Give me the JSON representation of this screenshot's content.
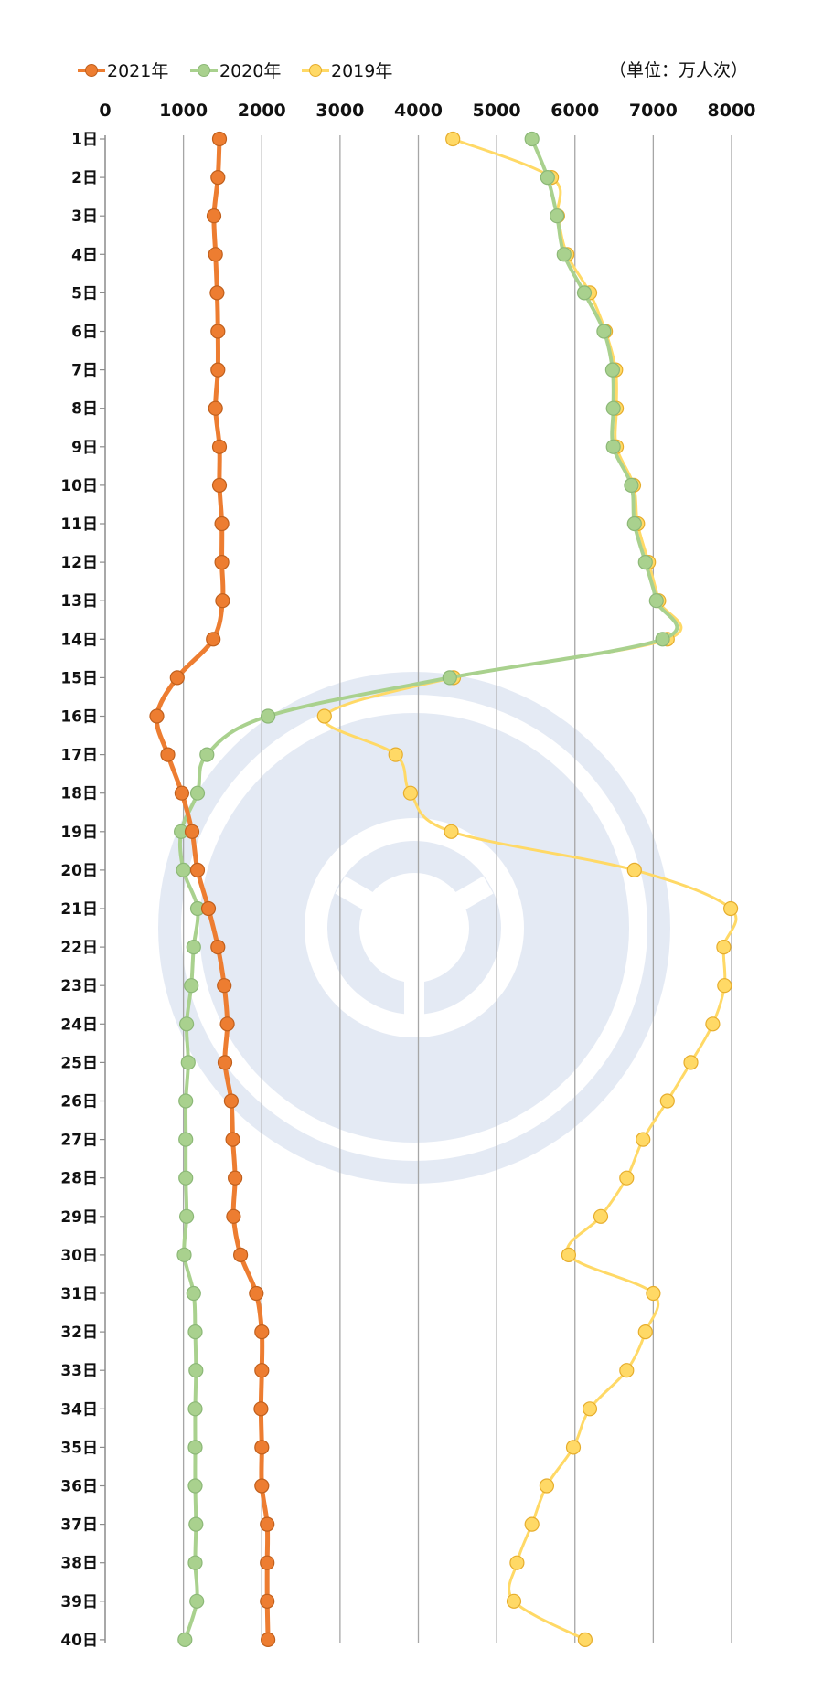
{
  "chart_data": {
    "type": "line",
    "orientation": "vertical-categories",
    "unit_label": "（单位：万人次）",
    "xlim": [
      0,
      8000
    ],
    "x_ticks": [
      "0",
      "1000",
      "2000",
      "3000",
      "4000",
      "5000",
      "6000",
      "7000",
      "8000"
    ],
    "x_tick_values": [
      0,
      1000,
      2000,
      3000,
      4000,
      5000,
      6000,
      7000,
      8000
    ],
    "grid": "vertical",
    "legend_position": "top-left",
    "categories": [
      "1日",
      "2日",
      "3日",
      "4日",
      "5日",
      "6日",
      "7日",
      "8日",
      "9日",
      "10日",
      "11日",
      "12日",
      "13日",
      "14日",
      "15日",
      "16日",
      "17日",
      "18日",
      "19日",
      "20日",
      "21日",
      "22日",
      "23日",
      "24日",
      "25日",
      "26日",
      "27日",
      "28日",
      "29日",
      "30日",
      "31日",
      "32日",
      "33日",
      "34日",
      "35日",
      "36日",
      "37日",
      "38日",
      "39日",
      "40日"
    ],
    "series": [
      {
        "name": "2021年",
        "color": "#ED7D31",
        "values": [
          1460,
          1440,
          1390,
          1410,
          1430,
          1440,
          1440,
          1410,
          1460,
          1460,
          1490,
          1490,
          1500,
          1380,
          920,
          660,
          800,
          980,
          1110,
          1180,
          1320,
          1440,
          1520,
          1560,
          1530,
          1610,
          1630,
          1660,
          1640,
          1730,
          1930,
          2000,
          2000,
          1990,
          2000,
          2000,
          2070,
          2070,
          2070,
          2080
        ]
      },
      {
        "name": "2020年",
        "color": "#A9D18E",
        "values": [
          5450,
          5650,
          5770,
          5860,
          6120,
          6370,
          6480,
          6490,
          6490,
          6720,
          6760,
          6900,
          7040,
          7120,
          4400,
          2080,
          1300,
          1180,
          970,
          1000,
          1180,
          1130,
          1100,
          1040,
          1060,
          1030,
          1030,
          1030,
          1040,
          1010,
          1130,
          1150,
          1160,
          1150,
          1150,
          1150,
          1160,
          1150,
          1170,
          1020
        ]
      },
      {
        "name": "2019年",
        "color": "#FFD966",
        "values": [
          4440,
          5700,
          5780,
          5900,
          6190,
          6390,
          6520,
          6530,
          6530,
          6750,
          6800,
          6940,
          7070,
          7180,
          4450,
          2800,
          3710,
          3900,
          4420,
          6760,
          7990,
          7900,
          7910,
          7760,
          7480,
          7180,
          6870,
          6660,
          6330,
          5920,
          7000,
          6900,
          6660,
          6190,
          5980,
          5640,
          5450,
          5260,
          5220,
          6130
        ]
      }
    ]
  }
}
